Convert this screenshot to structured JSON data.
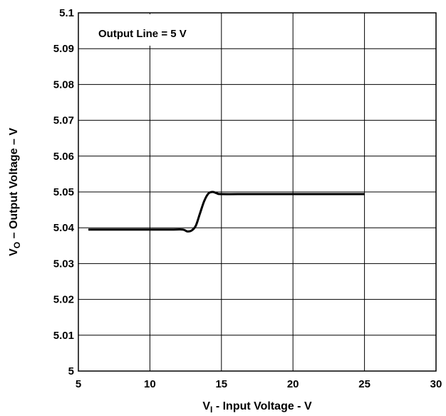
{
  "chart_data": {
    "type": "line",
    "title": "",
    "xlabel": {
      "main": "V",
      "sub": "I",
      "rest": " - Input Voltage - V"
    },
    "ylabel": {
      "main": "V",
      "sub": "O",
      "rest": " – Output Voltage – V"
    },
    "xlim": [
      5,
      30
    ],
    "ylim": [
      5.0,
      5.1
    ],
    "x_ticks": [
      "5",
      "10",
      "15",
      "20",
      "25",
      "30"
    ],
    "y_ticks": [
      "5",
      "5.01",
      "5.02",
      "5.03",
      "5.04",
      "5.05",
      "5.06",
      "5.07",
      "5.08",
      "5.09",
      "5.1"
    ],
    "grid": true,
    "annotation": "Output Line = 5 V",
    "series": [
      {
        "color": "#000000",
        "x": [
          5.7,
          8.0,
          10.0,
          11.5,
          12.3,
          12.6,
          12.9,
          13.2,
          13.5,
          13.8,
          14.1,
          14.4,
          14.7,
          15.0,
          17.0,
          20.0,
          23.0,
          25.0
        ],
        "y": [
          5.0395,
          5.0395,
          5.0395,
          5.0395,
          5.0395,
          5.039,
          5.0392,
          5.0405,
          5.044,
          5.0475,
          5.0496,
          5.05,
          5.0496,
          5.0494,
          5.0494,
          5.0494,
          5.0494,
          5.0494
        ]
      }
    ]
  }
}
